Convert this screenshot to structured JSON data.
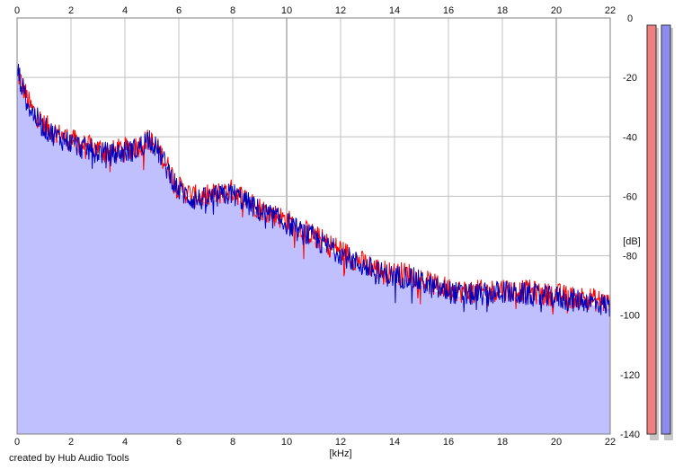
{
  "credit": "created by Hub Audio Tools",
  "colors": {
    "background": "#ffffff",
    "plot_background": "#ffffff",
    "grid": "#c0c0c0",
    "grid_major_x": "#808080",
    "fill": "#c0c0ff",
    "left_channel": "#ff0000",
    "right_channel": "#0000c0",
    "meter_left": "#f08080",
    "meter_right": "#8c8cf0",
    "meter_shadow": "#c8c8c8"
  },
  "chart_data": {
    "type": "line",
    "title": "",
    "xlabel": "[kHz]",
    "ylabel": "[dB]",
    "xlim": [
      0,
      22
    ],
    "ylim": [
      -140,
      0
    ],
    "x_ticks": [
      "0",
      "2",
      "4",
      "6",
      "8",
      "10",
      "12",
      "14",
      "16",
      "18",
      "20",
      "22"
    ],
    "y_ticks": [
      "0",
      "-20",
      "-40",
      "-60",
      "-80",
      "-100",
      "-120",
      "-140"
    ],
    "grid": true,
    "legend": "none",
    "x": [
      0,
      0.25,
      0.5,
      1,
      1.5,
      2,
      2.5,
      3,
      3.5,
      4,
      4.5,
      4.9,
      5.3,
      5.7,
      6,
      6.5,
      7,
      7.5,
      8,
      8.5,
      9,
      9.5,
      10,
      10.5,
      11,
      11.5,
      12,
      12.5,
      13,
      13.5,
      14,
      14.5,
      15,
      15.5,
      16,
      16.5,
      17,
      17.5,
      18,
      18.5,
      19,
      19.5,
      20,
      20.5,
      21,
      21.5,
      22
    ],
    "series": [
      {
        "channel": "left",
        "color": "#ff0000",
        "values": [
          -18,
          -24,
          -30,
          -36,
          -39,
          -41,
          -43,
          -44,
          -45,
          -44,
          -43,
          -41,
          -45,
          -52,
          -57,
          -60,
          -60,
          -59,
          -58,
          -61,
          -64,
          -66,
          -68,
          -71,
          -73,
          -76,
          -78,
          -81,
          -83,
          -85,
          -86,
          -86,
          -88,
          -90,
          -91,
          -92,
          -92,
          -92,
          -91,
          -92,
          -92,
          -93,
          -93,
          -94,
          -94,
          -95,
          -96
        ]
      },
      {
        "channel": "right",
        "color": "#0000c0",
        "values": [
          -17,
          -25,
          -31,
          -37,
          -40,
          -42,
          -44,
          -45,
          -46,
          -45,
          -44,
          -40,
          -46,
          -53,
          -58,
          -61,
          -61,
          -60,
          -59,
          -62,
          -65,
          -67,
          -69,
          -72,
          -74,
          -77,
          -79,
          -82,
          -84,
          -86,
          -87,
          -87,
          -89,
          -91,
          -92,
          -93,
          -93,
          -93,
          -92,
          -93,
          -93,
          -94,
          -94,
          -95,
          -95,
          -96,
          -97
        ]
      }
    ]
  },
  "meters": [
    {
      "channel": "left",
      "level": 1.0,
      "color": "#f08080"
    },
    {
      "channel": "right",
      "level": 1.0,
      "color": "#8c8cf0"
    }
  ]
}
